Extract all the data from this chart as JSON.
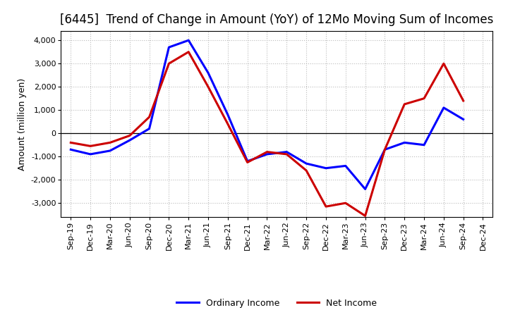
{
  "title": "[6445]  Trend of Change in Amount (YoY) of 12Mo Moving Sum of Incomes",
  "ylabel": "Amount (million yen)",
  "x_labels": [
    "Sep-19",
    "Dec-19",
    "Mar-20",
    "Jun-20",
    "Sep-20",
    "Dec-20",
    "Mar-21",
    "Jun-21",
    "Sep-21",
    "Dec-21",
    "Mar-22",
    "Jun-22",
    "Sep-22",
    "Dec-22",
    "Mar-23",
    "Jun-23",
    "Sep-23",
    "Dec-23",
    "Mar-24",
    "Jun-24",
    "Sep-24",
    "Dec-24"
  ],
  "ordinary_income": [
    -700,
    -900,
    -750,
    -300,
    200,
    3700,
    4000,
    2600,
    800,
    -1200,
    -900,
    -800,
    -1300,
    -1500,
    -1400,
    -2400,
    -700,
    -400,
    -500,
    1100,
    600,
    null
  ],
  "net_income": [
    -400,
    -550,
    -400,
    -100,
    700,
    3000,
    3500,
    2000,
    400,
    -1250,
    -800,
    -900,
    -1600,
    -3150,
    -3000,
    -3550,
    -700,
    1250,
    1500,
    3000,
    1400,
    null
  ],
  "ordinary_income_color": "#0000ff",
  "net_income_color": "#cc0000",
  "ylim": [
    -3600,
    4400
  ],
  "yticks": [
    -3000,
    -2000,
    -1000,
    0,
    1000,
    2000,
    3000,
    4000
  ],
  "background_color": "#ffffff",
  "grid_color": "#bbbbbb",
  "line_width": 2.2,
  "legend_labels": [
    "Ordinary Income",
    "Net Income"
  ],
  "title_fontsize": 12,
  "ylabel_fontsize": 9,
  "tick_fontsize": 8
}
